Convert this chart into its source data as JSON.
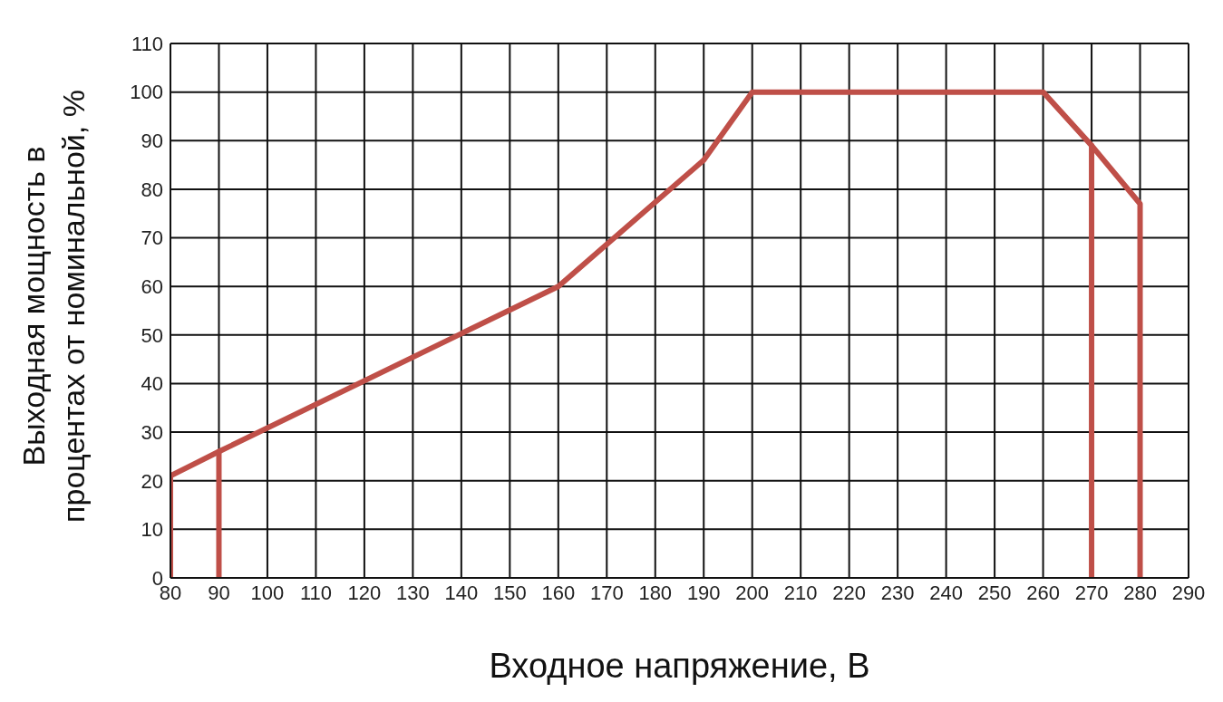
{
  "chart_data": {
    "type": "line",
    "xlabel": "Входное напряжение, В",
    "ylabel": "Выходная мощность в процентах от номинальной, %",
    "xlim": [
      80,
      290
    ],
    "xticks": [
      80,
      90,
      100,
      110,
      120,
      130,
      140,
      150,
      160,
      170,
      180,
      190,
      200,
      210,
      220,
      230,
      240,
      250,
      260,
      270,
      280,
      290
    ],
    "ylim": [
      0,
      110
    ],
    "yticks": [
      0,
      10,
      20,
      30,
      40,
      50,
      60,
      70,
      80,
      90,
      100,
      110
    ],
    "grid": true,
    "marker": "none",
    "line_style": "solid",
    "series": [
      {
        "color": "#bf4f48",
        "x": [
          80,
          80,
          90,
          160,
          190,
          200,
          260,
          270,
          280,
          280
        ],
        "values": [
          0,
          21,
          26,
          60,
          86,
          100,
          100,
          89,
          77,
          0
        ]
      },
      {
        "color": "#bf4f48",
        "x": [
          90,
          90
        ],
        "values": [
          0,
          26
        ]
      },
      {
        "color": "#bf4f48",
        "x": [
          270,
          270
        ],
        "values": [
          0,
          89
        ]
      }
    ]
  }
}
